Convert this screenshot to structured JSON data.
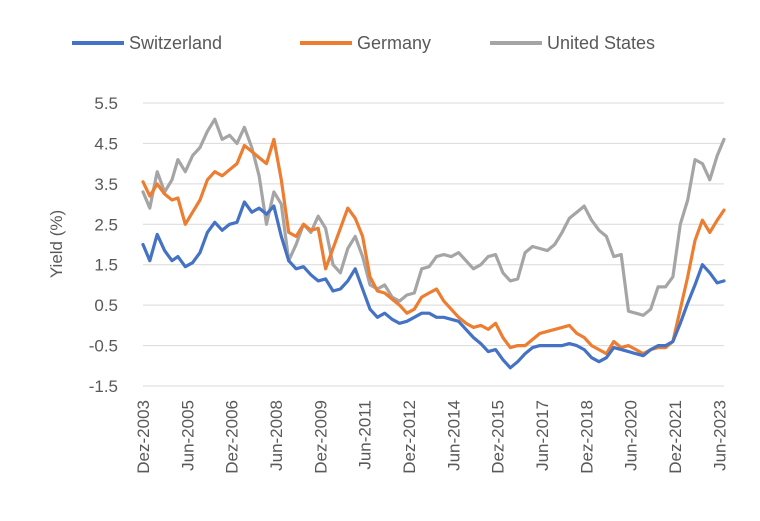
{
  "chart_data": {
    "type": "line",
    "title": "",
    "xlabel": "",
    "ylabel": "Yield (%)",
    "ylim": [
      -1.5,
      5.5
    ],
    "yticks": [
      "5.5",
      "4.5",
      "3.5",
      "2.5",
      "1.5",
      "0.5",
      "-0.5",
      "-1.5"
    ],
    "grid": true,
    "legend_position": "top",
    "xlim": [
      2003.92,
      2023.58
    ],
    "xticks": [
      {
        "label": "Dez-2003",
        "x": 2003.92
      },
      {
        "label": "Jun-2005",
        "x": 2005.42
      },
      {
        "label": "Dez-2006",
        "x": 2006.92
      },
      {
        "label": "Jun-2008",
        "x": 2008.42
      },
      {
        "label": "Dez-2009",
        "x": 2009.92
      },
      {
        "label": "Jun-2011",
        "x": 2011.42
      },
      {
        "label": "Dez-2012",
        "x": 2012.92
      },
      {
        "label": "Jun-2014",
        "x": 2014.42
      },
      {
        "label": "Dez-2015",
        "x": 2015.92
      },
      {
        "label": "Jun-2017",
        "x": 2017.42
      },
      {
        "label": "Dez-2018",
        "x": 2018.92
      },
      {
        "label": "Jun-2020",
        "x": 2020.42
      },
      {
        "label": "Dez-2021",
        "x": 2021.92
      },
      {
        "label": "Jun-2023",
        "x": 2023.42
      }
    ],
    "series": [
      {
        "name": "Switzerland",
        "color": "#4472c4",
        "points": [
          [
            2003.92,
            2.0
          ],
          [
            2004.15,
            1.6
          ],
          [
            2004.4,
            2.25
          ],
          [
            2004.65,
            1.85
          ],
          [
            2004.9,
            1.6
          ],
          [
            2005.1,
            1.7
          ],
          [
            2005.35,
            1.45
          ],
          [
            2005.6,
            1.55
          ],
          [
            2005.85,
            1.8
          ],
          [
            2006.1,
            2.3
          ],
          [
            2006.35,
            2.55
          ],
          [
            2006.6,
            2.35
          ],
          [
            2006.85,
            2.5
          ],
          [
            2007.1,
            2.55
          ],
          [
            2007.35,
            3.05
          ],
          [
            2007.6,
            2.8
          ],
          [
            2007.85,
            2.9
          ],
          [
            2008.1,
            2.75
          ],
          [
            2008.35,
            2.95
          ],
          [
            2008.6,
            2.2
          ],
          [
            2008.85,
            1.6
          ],
          [
            2009.1,
            1.4
          ],
          [
            2009.35,
            1.45
          ],
          [
            2009.6,
            1.25
          ],
          [
            2009.85,
            1.1
          ],
          [
            2010.1,
            1.15
          ],
          [
            2010.35,
            0.85
          ],
          [
            2010.6,
            0.9
          ],
          [
            2010.85,
            1.1
          ],
          [
            2011.1,
            1.4
          ],
          [
            2011.35,
            0.9
          ],
          [
            2011.6,
            0.4
          ],
          [
            2011.85,
            0.2
          ],
          [
            2012.1,
            0.3
          ],
          [
            2012.35,
            0.15
          ],
          [
            2012.6,
            0.05
          ],
          [
            2012.85,
            0.1
          ],
          [
            2013.1,
            0.2
          ],
          [
            2013.35,
            0.3
          ],
          [
            2013.6,
            0.3
          ],
          [
            2013.85,
            0.2
          ],
          [
            2014.1,
            0.2
          ],
          [
            2014.35,
            0.15
          ],
          [
            2014.6,
            0.1
          ],
          [
            2014.85,
            -0.1
          ],
          [
            2015.1,
            -0.3
          ],
          [
            2015.35,
            -0.45
          ],
          [
            2015.6,
            -0.65
          ],
          [
            2015.85,
            -0.6
          ],
          [
            2016.1,
            -0.85
          ],
          [
            2016.35,
            -1.05
          ],
          [
            2016.6,
            -0.9
          ],
          [
            2016.85,
            -0.7
          ],
          [
            2017.1,
            -0.55
          ],
          [
            2017.35,
            -0.5
          ],
          [
            2017.6,
            -0.5
          ],
          [
            2017.85,
            -0.5
          ],
          [
            2018.1,
            -0.5
          ],
          [
            2018.35,
            -0.45
          ],
          [
            2018.6,
            -0.5
          ],
          [
            2018.85,
            -0.6
          ],
          [
            2019.1,
            -0.8
          ],
          [
            2019.35,
            -0.9
          ],
          [
            2019.6,
            -0.8
          ],
          [
            2019.85,
            -0.55
          ],
          [
            2020.1,
            -0.6
          ],
          [
            2020.35,
            -0.65
          ],
          [
            2020.6,
            -0.7
          ],
          [
            2020.85,
            -0.75
          ],
          [
            2021.1,
            -0.6
          ],
          [
            2021.35,
            -0.5
          ],
          [
            2021.6,
            -0.5
          ],
          [
            2021.85,
            -0.4
          ],
          [
            2022.1,
            0.05
          ],
          [
            2022.35,
            0.55
          ],
          [
            2022.6,
            1.0
          ],
          [
            2022.85,
            1.5
          ],
          [
            2023.1,
            1.3
          ],
          [
            2023.35,
            1.05
          ],
          [
            2023.58,
            1.1
          ]
        ]
      },
      {
        "name": "Germany",
        "color": "#ed7d31",
        "points": [
          [
            2003.92,
            3.55
          ],
          [
            2004.15,
            3.2
          ],
          [
            2004.4,
            3.5
          ],
          [
            2004.65,
            3.25
          ],
          [
            2004.9,
            3.1
          ],
          [
            2005.1,
            3.15
          ],
          [
            2005.35,
            2.5
          ],
          [
            2005.6,
            2.8
          ],
          [
            2005.85,
            3.1
          ],
          [
            2006.1,
            3.6
          ],
          [
            2006.35,
            3.8
          ],
          [
            2006.6,
            3.7
          ],
          [
            2006.85,
            3.85
          ],
          [
            2007.1,
            4.0
          ],
          [
            2007.35,
            4.45
          ],
          [
            2007.6,
            4.3
          ],
          [
            2007.85,
            4.15
          ],
          [
            2008.1,
            4.0
          ],
          [
            2008.35,
            4.6
          ],
          [
            2008.6,
            3.6
          ],
          [
            2008.85,
            2.3
          ],
          [
            2009.1,
            2.2
          ],
          [
            2009.35,
            2.5
          ],
          [
            2009.6,
            2.35
          ],
          [
            2009.85,
            2.4
          ],
          [
            2010.1,
            1.4
          ],
          [
            2010.35,
            1.9
          ],
          [
            2010.6,
            2.4
          ],
          [
            2010.85,
            2.9
          ],
          [
            2011.1,
            2.65
          ],
          [
            2011.35,
            2.2
          ],
          [
            2011.6,
            1.2
          ],
          [
            2011.85,
            0.85
          ],
          [
            2012.1,
            0.8
          ],
          [
            2012.35,
            0.65
          ],
          [
            2012.6,
            0.5
          ],
          [
            2012.85,
            0.3
          ],
          [
            2013.1,
            0.4
          ],
          [
            2013.35,
            0.7
          ],
          [
            2013.6,
            0.8
          ],
          [
            2013.85,
            0.9
          ],
          [
            2014.1,
            0.6
          ],
          [
            2014.35,
            0.4
          ],
          [
            2014.6,
            0.2
          ],
          [
            2014.85,
            0.05
          ],
          [
            2015.1,
            -0.05
          ],
          [
            2015.35,
            0.0
          ],
          [
            2015.6,
            -0.1
          ],
          [
            2015.85,
            0.05
          ],
          [
            2016.1,
            -0.3
          ],
          [
            2016.35,
            -0.55
          ],
          [
            2016.6,
            -0.5
          ],
          [
            2016.85,
            -0.5
          ],
          [
            2017.1,
            -0.35
          ],
          [
            2017.35,
            -0.2
          ],
          [
            2017.6,
            -0.15
          ],
          [
            2017.85,
            -0.1
          ],
          [
            2018.1,
            -0.05
          ],
          [
            2018.35,
            0.0
          ],
          [
            2018.6,
            -0.2
          ],
          [
            2018.85,
            -0.3
          ],
          [
            2019.1,
            -0.5
          ],
          [
            2019.35,
            -0.6
          ],
          [
            2019.6,
            -0.7
          ],
          [
            2019.85,
            -0.4
          ],
          [
            2020.1,
            -0.55
          ],
          [
            2020.35,
            -0.5
          ],
          [
            2020.6,
            -0.6
          ],
          [
            2020.85,
            -0.7
          ],
          [
            2021.1,
            -0.6
          ],
          [
            2021.35,
            -0.55
          ],
          [
            2021.6,
            -0.55
          ],
          [
            2021.85,
            -0.4
          ],
          [
            2022.1,
            0.4
          ],
          [
            2022.35,
            1.2
          ],
          [
            2022.6,
            2.1
          ],
          [
            2022.85,
            2.6
          ],
          [
            2023.1,
            2.3
          ],
          [
            2023.35,
            2.6
          ],
          [
            2023.58,
            2.85
          ]
        ]
      },
      {
        "name": "United States",
        "color": "#a5a5a5",
        "points": [
          [
            2003.92,
            3.3
          ],
          [
            2004.15,
            2.9
          ],
          [
            2004.4,
            3.8
          ],
          [
            2004.65,
            3.3
          ],
          [
            2004.9,
            3.6
          ],
          [
            2005.1,
            4.1
          ],
          [
            2005.35,
            3.8
          ],
          [
            2005.6,
            4.2
          ],
          [
            2005.85,
            4.4
          ],
          [
            2006.1,
            4.8
          ],
          [
            2006.35,
            5.1
          ],
          [
            2006.6,
            4.6
          ],
          [
            2006.85,
            4.7
          ],
          [
            2007.1,
            4.5
          ],
          [
            2007.35,
            4.9
          ],
          [
            2007.6,
            4.4
          ],
          [
            2007.85,
            3.7
          ],
          [
            2008.1,
            2.5
          ],
          [
            2008.35,
            3.3
          ],
          [
            2008.6,
            3.0
          ],
          [
            2008.85,
            1.6
          ],
          [
            2009.1,
            2.0
          ],
          [
            2009.35,
            2.5
          ],
          [
            2009.6,
            2.3
          ],
          [
            2009.85,
            2.7
          ],
          [
            2010.1,
            2.4
          ],
          [
            2010.35,
            1.5
          ],
          [
            2010.6,
            1.3
          ],
          [
            2010.85,
            1.9
          ],
          [
            2011.1,
            2.2
          ],
          [
            2011.35,
            1.7
          ],
          [
            2011.6,
            1.0
          ],
          [
            2011.85,
            0.9
          ],
          [
            2012.1,
            1.0
          ],
          [
            2012.35,
            0.7
          ],
          [
            2012.6,
            0.6
          ],
          [
            2012.85,
            0.75
          ],
          [
            2013.1,
            0.8
          ],
          [
            2013.35,
            1.4
          ],
          [
            2013.6,
            1.45
          ],
          [
            2013.85,
            1.7
          ],
          [
            2014.1,
            1.75
          ],
          [
            2014.35,
            1.7
          ],
          [
            2014.6,
            1.8
          ],
          [
            2014.85,
            1.6
          ],
          [
            2015.1,
            1.4
          ],
          [
            2015.35,
            1.5
          ],
          [
            2015.6,
            1.7
          ],
          [
            2015.85,
            1.75
          ],
          [
            2016.1,
            1.3
          ],
          [
            2016.35,
            1.1
          ],
          [
            2016.6,
            1.15
          ],
          [
            2016.85,
            1.8
          ],
          [
            2017.1,
            1.95
          ],
          [
            2017.35,
            1.9
          ],
          [
            2017.6,
            1.85
          ],
          [
            2017.85,
            2.0
          ],
          [
            2018.1,
            2.3
          ],
          [
            2018.35,
            2.65
          ],
          [
            2018.6,
            2.8
          ],
          [
            2018.85,
            2.95
          ],
          [
            2019.1,
            2.6
          ],
          [
            2019.35,
            2.35
          ],
          [
            2019.6,
            2.2
          ],
          [
            2019.85,
            1.7
          ],
          [
            2020.1,
            1.75
          ],
          [
            2020.35,
            0.35
          ],
          [
            2020.6,
            0.3
          ],
          [
            2020.85,
            0.25
          ],
          [
            2021.1,
            0.4
          ],
          [
            2021.35,
            0.95
          ],
          [
            2021.6,
            0.95
          ],
          [
            2021.85,
            1.2
          ],
          [
            2022.1,
            2.5
          ],
          [
            2022.35,
            3.1
          ],
          [
            2022.6,
            4.1
          ],
          [
            2022.85,
            4.0
          ],
          [
            2023.1,
            3.6
          ],
          [
            2023.35,
            4.2
          ],
          [
            2023.58,
            4.6
          ]
        ]
      }
    ]
  }
}
